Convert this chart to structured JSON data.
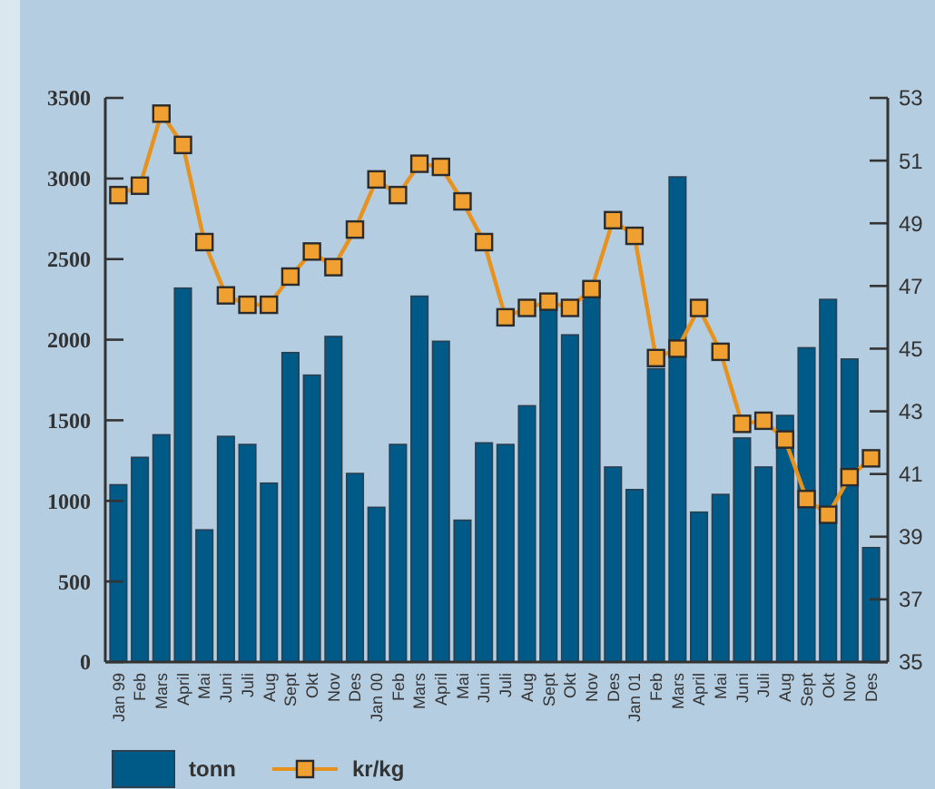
{
  "chart_data": {
    "type": "bar",
    "categories": [
      "Jan 99",
      "Feb",
      "Mars",
      "April",
      "Mai",
      "Juni",
      "Juli",
      "Aug",
      "Sept",
      "Okt",
      "Nov",
      "Des",
      "Jan 00",
      "Feb",
      "Mars",
      "April",
      "Mai",
      "Juni",
      "Juli",
      "Aug",
      "Sept",
      "Okt",
      "Nov",
      "Des",
      "Jan 01",
      "Feb",
      "Mars",
      "April",
      "Mai",
      "Juni",
      "Juli",
      "Aug",
      "Sept",
      "Okt",
      "Nov",
      "Des"
    ],
    "series": [
      {
        "name": "tonn",
        "color": "#005a87",
        "values": [
          1100,
          1270,
          1410,
          2320,
          820,
          1400,
          1350,
          1110,
          1920,
          1780,
          2020,
          1170,
          960,
          1350,
          2270,
          1990,
          880,
          1360,
          1350,
          1590,
          2280,
          2030,
          2360,
          1210,
          1070,
          1820,
          3010,
          930,
          1040,
          1390,
          1210,
          1530,
          1950,
          2250,
          1880,
          710
        ]
      },
      {
        "name": "kr/kg",
        "type": "line",
        "axis": "y2",
        "color": "#e8921e",
        "marker": "square",
        "values": [
          49.9,
          50.2,
          52.5,
          51.5,
          48.4,
          46.7,
          46.4,
          46.4,
          47.3,
          48.1,
          47.6,
          48.8,
          50.4,
          49.9,
          50.9,
          50.8,
          49.7,
          48.4,
          46.0,
          46.3,
          46.5,
          46.3,
          46.9,
          49.1,
          48.6,
          44.7,
          45.0,
          46.3,
          44.9,
          42.6,
          42.7,
          42.1,
          40.2,
          39.7,
          40.9,
          41.5
        ]
      }
    ],
    "ylim": [
      0,
      3500
    ],
    "yticks": [
      0,
      500,
      1000,
      1500,
      2000,
      2500,
      3000,
      3500
    ],
    "y2lim": [
      35,
      53
    ],
    "y2ticks": [
      35,
      37,
      39,
      41,
      43,
      45,
      47,
      49,
      51,
      53
    ],
    "legend": "bottom",
    "grid": false
  }
}
